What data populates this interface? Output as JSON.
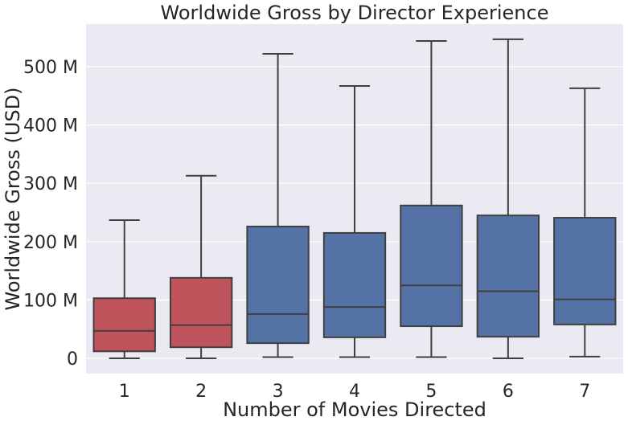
{
  "chart_data": {
    "type": "box",
    "title": "Worldwide Gross by Director Experience",
    "xlabel": "Number of Movies Directed",
    "ylabel": "Worldwide Gross (USD)",
    "ylim": [
      -25,
      570
    ],
    "y_unit": "M USD",
    "yticks": [
      {
        "value": 0,
        "label": "0"
      },
      {
        "value": 100,
        "label": "100 M"
      },
      {
        "value": 200,
        "label": "200 M"
      },
      {
        "value": 300,
        "label": "300 M"
      },
      {
        "value": 400,
        "label": "400 M"
      },
      {
        "value": 500,
        "label": "500 M"
      }
    ],
    "grid": true,
    "background": "#eaeaf2",
    "categories": [
      "1",
      "2",
      "3",
      "4",
      "5",
      "6",
      "7"
    ],
    "boxes": [
      {
        "category": "1",
        "whisker_low": 0,
        "q1": 12,
        "median": 47,
        "q3": 103,
        "whisker_high": 237,
        "color": "#c0545d"
      },
      {
        "category": "2",
        "whisker_low": 0,
        "q1": 19,
        "median": 57,
        "q3": 138,
        "whisker_high": 313,
        "color": "#c0545d"
      },
      {
        "category": "3",
        "whisker_low": 2,
        "q1": 26,
        "median": 76,
        "q3": 226,
        "whisker_high": 522,
        "color": "#5572a6"
      },
      {
        "category": "4",
        "whisker_low": 2,
        "q1": 36,
        "median": 88,
        "q3": 215,
        "whisker_high": 467,
        "color": "#5572a6"
      },
      {
        "category": "5",
        "whisker_low": 2,
        "q1": 55,
        "median": 125,
        "q3": 262,
        "whisker_high": 544,
        "color": "#5572a6"
      },
      {
        "category": "6",
        "whisker_low": 0,
        "q1": 37,
        "median": 115,
        "q3": 245,
        "whisker_high": 547,
        "color": "#5572a6"
      },
      {
        "category": "7",
        "whisker_low": 3,
        "q1": 58,
        "median": 101,
        "q3": 241,
        "whisker_high": 463,
        "color": "#5572a6"
      }
    ],
    "line_color": "#3f3f3f"
  }
}
